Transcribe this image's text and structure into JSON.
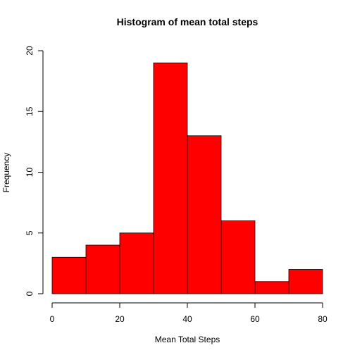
{
  "chart_data": {
    "type": "bar",
    "title": "Histogram of mean total steps",
    "xlabel": "Mean Total Steps",
    "ylabel": "Frequency",
    "bins": [
      {
        "start": 0,
        "end": 10,
        "count": 3
      },
      {
        "start": 10,
        "end": 20,
        "count": 4
      },
      {
        "start": 20,
        "end": 30,
        "count": 5
      },
      {
        "start": 30,
        "end": 40,
        "count": 19
      },
      {
        "start": 40,
        "end": 50,
        "count": 13
      },
      {
        "start": 50,
        "end": 60,
        "count": 6
      },
      {
        "start": 60,
        "end": 70,
        "count": 1
      },
      {
        "start": 70,
        "end": 80,
        "count": 2
      }
    ],
    "x_ticks": [
      0,
      20,
      40,
      60,
      80
    ],
    "y_ticks": [
      0,
      5,
      10,
      15,
      20
    ],
    "xlim": [
      0,
      80
    ],
    "ylim": [
      0,
      20
    ],
    "grid": false,
    "bar_color": "#ff0000",
    "bar_edge_color": "#000000"
  }
}
